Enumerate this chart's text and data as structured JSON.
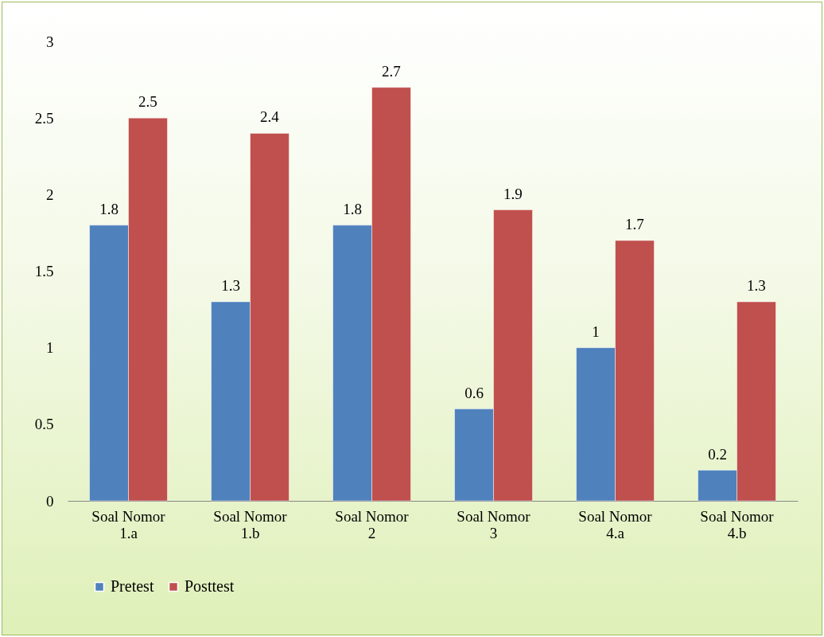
{
  "chart_data": {
    "type": "bar",
    "categories": [
      "Soal Nomor 1.a",
      "Soal Nomor 1.b",
      "Soal Nomor 2",
      "Soal Nomor 3",
      "Soal Nomor 4.a",
      "Soal Nomor 4.b"
    ],
    "series": [
      {
        "name": "Pretest",
        "color": "#4f81bd",
        "values": [
          1.8,
          1.3,
          1.8,
          0.6,
          1,
          0.2
        ]
      },
      {
        "name": "Posttest",
        "color": "#c0504d",
        "values": [
          2.5,
          2.4,
          2.7,
          1.9,
          1.7,
          1.3
        ]
      }
    ],
    "ylim": [
      0,
      3
    ],
    "yticks": [
      0,
      0.5,
      1,
      1.5,
      2,
      2.5,
      3
    ],
    "grid": false,
    "legend": "bottom",
    "data_labels": true
  }
}
